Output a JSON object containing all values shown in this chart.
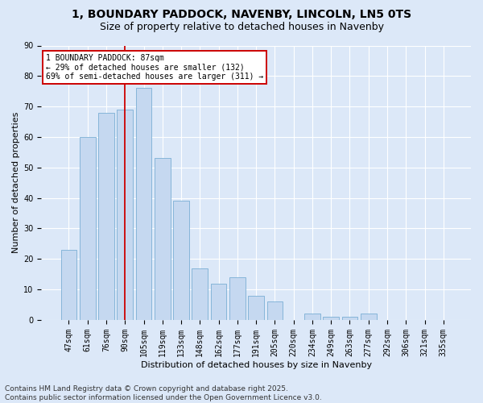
{
  "title": "1, BOUNDARY PADDOCK, NAVENBY, LINCOLN, LN5 0TS",
  "subtitle": "Size of property relative to detached houses in Navenby",
  "xlabel": "Distribution of detached houses by size in Navenby",
  "ylabel": "Number of detached properties",
  "categories": [
    "47sqm",
    "61sqm",
    "76sqm",
    "90sqm",
    "105sqm",
    "119sqm",
    "133sqm",
    "148sqm",
    "162sqm",
    "177sqm",
    "191sqm",
    "205sqm",
    "220sqm",
    "234sqm",
    "249sqm",
    "263sqm",
    "277sqm",
    "292sqm",
    "306sqm",
    "321sqm",
    "335sqm"
  ],
  "values": [
    23,
    60,
    68,
    69,
    76,
    53,
    39,
    17,
    12,
    14,
    8,
    6,
    0,
    2,
    1,
    1,
    2,
    0,
    0,
    0,
    0
  ],
  "bar_color": "#c5d8f0",
  "bar_edge_color": "#7aafd4",
  "vline_x_index": 3,
  "vline_color": "#cc0000",
  "annotation_line1": "1 BOUNDARY PADDOCK: 87sqm",
  "annotation_line2": "← 29% of detached houses are smaller (132)",
  "annotation_line3": "69% of semi-detached houses are larger (311) →",
  "annotation_box_color": "#ffffff",
  "annotation_box_edge": "#cc0000",
  "ylim": [
    0,
    90
  ],
  "yticks": [
    0,
    10,
    20,
    30,
    40,
    50,
    60,
    70,
    80,
    90
  ],
  "footer": "Contains HM Land Registry data © Crown copyright and database right 2025.\nContains public sector information licensed under the Open Government Licence v3.0.",
  "bg_color": "#dce8f8",
  "plot_bg_color": "#dce8f8",
  "title_fontsize": 10,
  "subtitle_fontsize": 9,
  "axis_label_fontsize": 8,
  "tick_fontsize": 7,
  "annotation_fontsize": 7,
  "footer_fontsize": 6.5
}
